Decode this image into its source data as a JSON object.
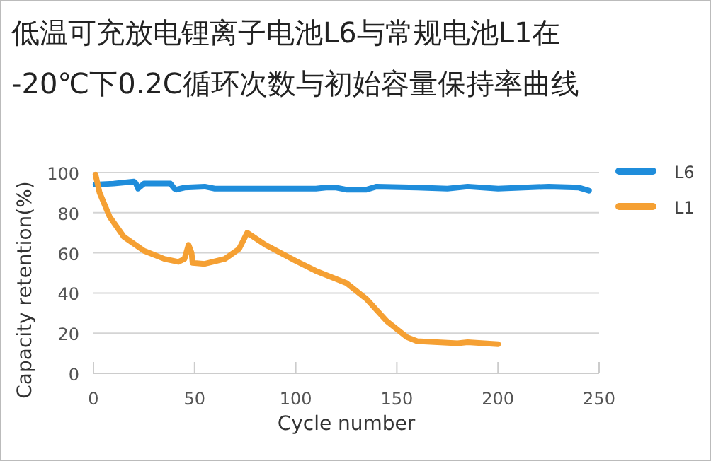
{
  "chart_data": {
    "type": "line",
    "title": "低温可充放电锂离子电池L6与常规电池L1在",
    "subtitle": "-20℃下0.2C循环次数与初始容量保持率曲线",
    "xlabel": "Cycle number",
    "ylabel": "Capacity retention(%)",
    "xlim": [
      0,
      250
    ],
    "xticks": [
      0,
      50,
      100,
      150,
      200,
      250
    ],
    "ylim": [
      0,
      100
    ],
    "yticks": [
      0,
      20,
      40,
      60,
      80,
      100
    ],
    "grid": "y",
    "legend": "right",
    "marker": "none",
    "line_style": "solid",
    "series": [
      {
        "name": "L6",
        "color": "#1f8ddb",
        "x": [
          1,
          10,
          20,
          21,
          22,
          25,
          38,
          40,
          41,
          45,
          55,
          60,
          80,
          110,
          115,
          120,
          125,
          135,
          140,
          160,
          175,
          185,
          200,
          225,
          240,
          245
        ],
        "values": [
          94,
          94.5,
          95.5,
          94.5,
          92,
          94.5,
          94.5,
          92,
          91.5,
          92.5,
          93,
          92,
          92,
          92,
          92.5,
          92.5,
          91.5,
          91.5,
          93,
          92.5,
          92,
          93,
          92,
          93,
          92.5,
          91
        ]
      },
      {
        "name": "L1",
        "color": "#f5a033",
        "x": [
          1,
          3,
          8,
          15,
          25,
          35,
          42,
          45,
          47,
          48.5,
          49,
          55,
          65,
          72,
          76,
          85,
          100,
          110,
          125,
          135,
          145,
          155,
          160,
          180,
          185,
          200
        ],
        "values": [
          99,
          90,
          78,
          68,
          61,
          57,
          55.5,
          57,
          64,
          60,
          55,
          54.5,
          57,
          62,
          70,
          64,
          56,
          51,
          45,
          37,
          26,
          18,
          16,
          15,
          15.5,
          14.5
        ]
      }
    ]
  }
}
